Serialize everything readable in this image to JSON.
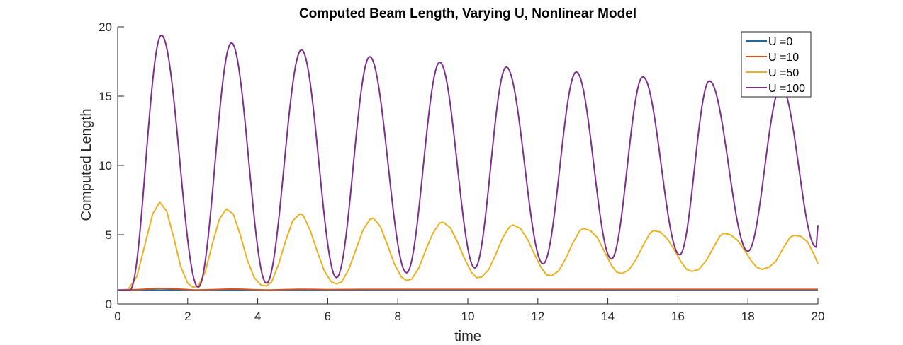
{
  "chart_data": {
    "type": "line",
    "title": "Computed Beam Length, Varying U, Nonlinear Model",
    "xlabel": "time",
    "ylabel": "Computed Length",
    "xlim": [
      0,
      20
    ],
    "ylim": [
      0,
      20
    ],
    "xticks": [
      0,
      2,
      4,
      6,
      8,
      10,
      12,
      14,
      16,
      18,
      20
    ],
    "yticks": [
      0,
      5,
      10,
      15,
      20
    ],
    "grid": false,
    "legend_position": "top-right",
    "series": [
      {
        "name": "U =0",
        "color": "#0072BD",
        "x": [
          0,
          20
        ],
        "y": [
          1.0,
          1.0
        ]
      },
      {
        "name": "U =10",
        "color": "#D95319",
        "x": [
          0,
          0.3,
          0.7,
          1.0,
          1.2,
          1.5,
          1.9,
          2.2,
          2.5,
          3.0,
          3.3,
          3.6,
          4.0,
          4.3,
          4.7,
          5.2,
          5.6,
          6.0,
          6.3,
          7.0,
          8.0,
          9.0,
          10.0,
          11.0,
          12.0,
          13.0,
          14.0,
          15.0,
          16.0,
          17.0,
          18.0,
          19.0,
          20.0
        ],
        "y": [
          1.0,
          1.0,
          1.05,
          1.1,
          1.12,
          1.1,
          1.05,
          1.0,
          1.02,
          1.06,
          1.08,
          1.06,
          1.02,
          1.0,
          1.03,
          1.06,
          1.05,
          1.03,
          1.04,
          1.05,
          1.05,
          1.05,
          1.05,
          1.05,
          1.05,
          1.05,
          1.05,
          1.05,
          1.05,
          1.05,
          1.05,
          1.05,
          1.05
        ]
      },
      {
        "name": "U =50",
        "color": "#EDB120",
        "x": [
          0,
          0.3,
          0.55,
          0.8,
          1.0,
          1.2,
          1.4,
          1.6,
          1.8,
          2.0,
          2.15,
          2.3,
          2.5,
          2.7,
          2.9,
          3.1,
          3.3,
          3.5,
          3.7,
          3.9,
          4.1,
          4.25,
          4.4,
          4.6,
          4.8,
          5.0,
          5.2,
          5.3,
          5.5,
          5.7,
          5.9,
          6.1,
          6.25,
          6.4,
          6.6,
          6.8,
          7.0,
          7.2,
          7.3,
          7.5,
          7.7,
          7.9,
          8.1,
          8.25,
          8.4,
          8.6,
          8.8,
          9.0,
          9.2,
          9.3,
          9.5,
          9.7,
          9.9,
          10.1,
          10.25,
          10.4,
          10.6,
          10.8,
          11.0,
          11.2,
          11.3,
          11.5,
          11.7,
          11.9,
          12.1,
          12.25,
          12.4,
          12.6,
          12.8,
          13.0,
          13.2,
          13.3,
          13.5,
          13.7,
          13.9,
          14.1,
          14.25,
          14.4,
          14.6,
          14.8,
          15.0,
          15.2,
          15.3,
          15.5,
          15.7,
          15.9,
          16.1,
          16.25,
          16.4,
          16.6,
          16.8,
          17.0,
          17.2,
          17.3,
          17.5,
          17.7,
          17.9,
          18.1,
          18.25,
          18.4,
          18.6,
          18.8,
          19.0,
          19.2,
          19.3,
          19.5,
          19.7,
          19.9,
          20.0
        ],
        "y": [
          1.0,
          1.05,
          2.0,
          4.5,
          6.5,
          7.35,
          6.7,
          4.8,
          2.7,
          1.5,
          1.2,
          1.3,
          2.3,
          4.3,
          6.1,
          6.85,
          6.5,
          5.0,
          3.2,
          1.9,
          1.35,
          1.3,
          1.6,
          2.9,
          4.6,
          6.0,
          6.5,
          6.4,
          5.3,
          3.8,
          2.4,
          1.6,
          1.45,
          1.6,
          2.5,
          3.9,
          5.3,
          6.1,
          6.2,
          5.6,
          4.3,
          2.9,
          1.95,
          1.7,
          1.8,
          2.6,
          3.9,
          5.1,
          5.85,
          5.9,
          5.5,
          4.5,
          3.3,
          2.3,
          1.9,
          1.95,
          2.5,
          3.6,
          4.8,
          5.6,
          5.7,
          5.45,
          4.7,
          3.6,
          2.6,
          2.1,
          2.05,
          2.4,
          3.3,
          4.4,
          5.3,
          5.45,
          5.3,
          4.8,
          3.8,
          2.8,
          2.3,
          2.2,
          2.45,
          3.2,
          4.2,
          5.1,
          5.3,
          5.2,
          4.7,
          3.9,
          3.0,
          2.5,
          2.35,
          2.5,
          3.1,
          4.0,
          4.9,
          5.1,
          5.0,
          4.6,
          3.9,
          3.1,
          2.65,
          2.5,
          2.65,
          3.1,
          4.0,
          4.8,
          4.95,
          4.9,
          4.5,
          3.5,
          2.9
        ]
      },
      {
        "name": "U =100",
        "color": "#7E2F8E",
        "peaks_x": [
          1.25,
          3.25,
          5.25,
          7.2,
          9.2,
          11.1,
          13.1,
          15.0,
          16.9,
          18.95
        ],
        "peaks_y": [
          19.4,
          18.85,
          18.35,
          17.85,
          17.45,
          17.1,
          16.75,
          16.4,
          16.1,
          15.7
        ],
        "troughs_x": [
          2.3,
          4.25,
          6.25,
          8.25,
          10.2,
          12.15,
          14.1,
          16.05,
          18.0,
          19.95
        ],
        "troughs_y": [
          1.2,
          1.5,
          1.9,
          2.25,
          2.6,
          2.9,
          3.25,
          3.55,
          3.8,
          4.1
        ],
        "start_x": 0,
        "start_y": 1.0,
        "end_x": 20,
        "end_y": 5.7
      }
    ]
  }
}
